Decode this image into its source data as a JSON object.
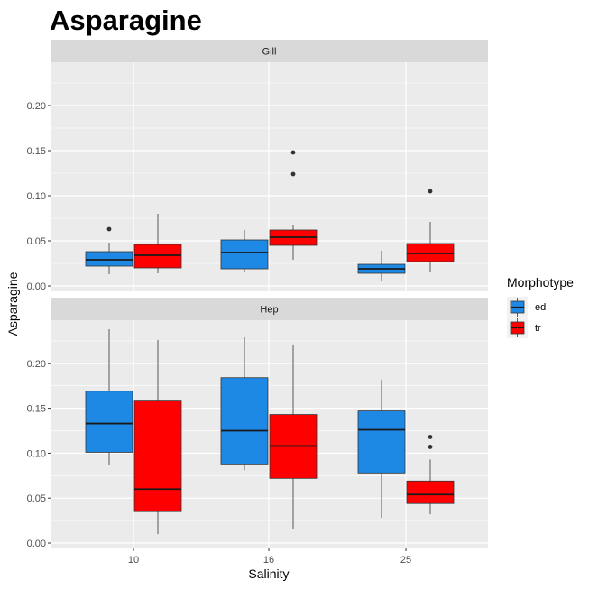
{
  "chart_data": {
    "type": "boxplot",
    "title": "Asparagine",
    "xlabel": "Salinity",
    "ylabel": "Asparagine",
    "categories": [
      "10",
      "16",
      "25"
    ],
    "y_ticks": [
      "0.00",
      "0.05",
      "0.10",
      "0.15",
      "0.20"
    ],
    "y_tick_values": [
      0,
      0.05,
      0.1,
      0.15,
      0.2
    ],
    "ylim": [
      -0.006,
      0.248
    ],
    "grid": true,
    "legend": {
      "title": "Morphotype",
      "placement": "right",
      "entries": [
        {
          "label": "ed",
          "color": "#1E88E5"
        },
        {
          "label": "tr",
          "color": "#FF0000"
        }
      ]
    },
    "colors": {
      "ed": "#1E88E5",
      "tr": "#FF0000",
      "panel_bg": "#EBEBEB",
      "strip_bg": "#D9D9D9",
      "grid": "#FFFFFF"
    },
    "panels": [
      {
        "strip": "Gill",
        "boxes": [
          {
            "category": "10",
            "group": "ed",
            "lower_whisker": 0.013,
            "q1": 0.022,
            "median": 0.029,
            "q3": 0.038,
            "upper_whisker": 0.048,
            "outliers": [
              0.063
            ]
          },
          {
            "category": "10",
            "group": "tr",
            "lower_whisker": 0.014,
            "q1": 0.02,
            "median": 0.034,
            "q3": 0.046,
            "upper_whisker": 0.08,
            "outliers": []
          },
          {
            "category": "16",
            "group": "ed",
            "lower_whisker": 0.015,
            "q1": 0.019,
            "median": 0.037,
            "q3": 0.051,
            "upper_whisker": 0.062,
            "outliers": []
          },
          {
            "category": "16",
            "group": "tr",
            "lower_whisker": 0.029,
            "q1": 0.045,
            "median": 0.054,
            "q3": 0.062,
            "upper_whisker": 0.068,
            "outliers": [
              0.124,
              0.148
            ]
          },
          {
            "category": "25",
            "group": "ed",
            "lower_whisker": 0.005,
            "q1": 0.014,
            "median": 0.019,
            "q3": 0.024,
            "upper_whisker": 0.039,
            "outliers": []
          },
          {
            "category": "25",
            "group": "tr",
            "lower_whisker": 0.015,
            "q1": 0.027,
            "median": 0.036,
            "q3": 0.047,
            "upper_whisker": 0.071,
            "outliers": [
              0.105
            ]
          }
        ]
      },
      {
        "strip": "Hep",
        "boxes": [
          {
            "category": "10",
            "group": "ed",
            "lower_whisker": 0.087,
            "q1": 0.101,
            "median": 0.133,
            "q3": 0.169,
            "upper_whisker": 0.238,
            "outliers": []
          },
          {
            "category": "10",
            "group": "tr",
            "lower_whisker": 0.01,
            "q1": 0.035,
            "median": 0.06,
            "q3": 0.158,
            "upper_whisker": 0.226,
            "outliers": []
          },
          {
            "category": "16",
            "group": "ed",
            "lower_whisker": 0.081,
            "q1": 0.088,
            "median": 0.125,
            "q3": 0.184,
            "upper_whisker": 0.229,
            "outliers": []
          },
          {
            "category": "16",
            "group": "tr",
            "lower_whisker": 0.016,
            "q1": 0.072,
            "median": 0.108,
            "q3": 0.143,
            "upper_whisker": 0.221,
            "outliers": []
          },
          {
            "category": "25",
            "group": "ed",
            "lower_whisker": 0.028,
            "q1": 0.078,
            "median": 0.126,
            "q3": 0.147,
            "upper_whisker": 0.182,
            "outliers": []
          },
          {
            "category": "25",
            "group": "tr",
            "lower_whisker": 0.032,
            "q1": 0.044,
            "median": 0.054,
            "q3": 0.069,
            "upper_whisker": 0.093,
            "outliers": [
              0.107,
              0.118
            ]
          }
        ]
      }
    ]
  }
}
